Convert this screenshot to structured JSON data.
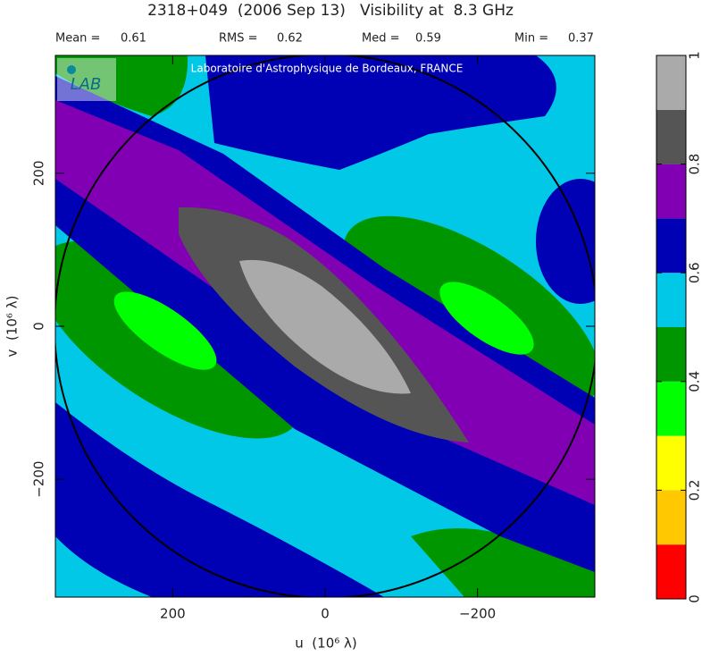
{
  "chart_data": {
    "type": "contour",
    "title": "2318+049  (2006 Sep 13)   Visibility at  8.3 GHz",
    "stats": [
      {
        "label": "Mean =",
        "value": 0.61
      },
      {
        "label": "RMS =",
        "value": 0.62
      },
      {
        "label": "Med =",
        "value": 0.59
      },
      {
        "label": "Min =",
        "value": 0.37
      }
    ],
    "watermark": "Laboratoire d'Astrophysique de Bordeaux, FRANCE",
    "logo": "LAB",
    "x_label": "u  (10⁶ λ)",
    "y_label": "v  (10⁶ λ)",
    "xlim": [
      354,
      -354
    ],
    "ylim": [
      -354,
      354
    ],
    "xticks": [
      200,
      0,
      {
        "value": -200,
        "label": "−200"
      }
    ],
    "yticks": [
      {
        "value": -200,
        "label": "−200"
      },
      0,
      200
    ],
    "colorbar": {
      "lim": [
        0,
        1
      ],
      "levels": [
        0,
        0.1,
        0.2,
        0.3,
        0.4,
        0.5,
        0.6,
        0.7,
        0.8,
        0.9,
        1
      ],
      "colors": [
        "#ff0000",
        "#ffc800",
        "#ffff00",
        "#00ff00",
        "#009600",
        "#00c8e6",
        "#0000b4",
        "#8200b4",
        "#555555",
        "#aaaaaa"
      ],
      "ticks": [
        0,
        0.2,
        0.4,
        0.6,
        0.8,
        1
      ]
    }
  }
}
